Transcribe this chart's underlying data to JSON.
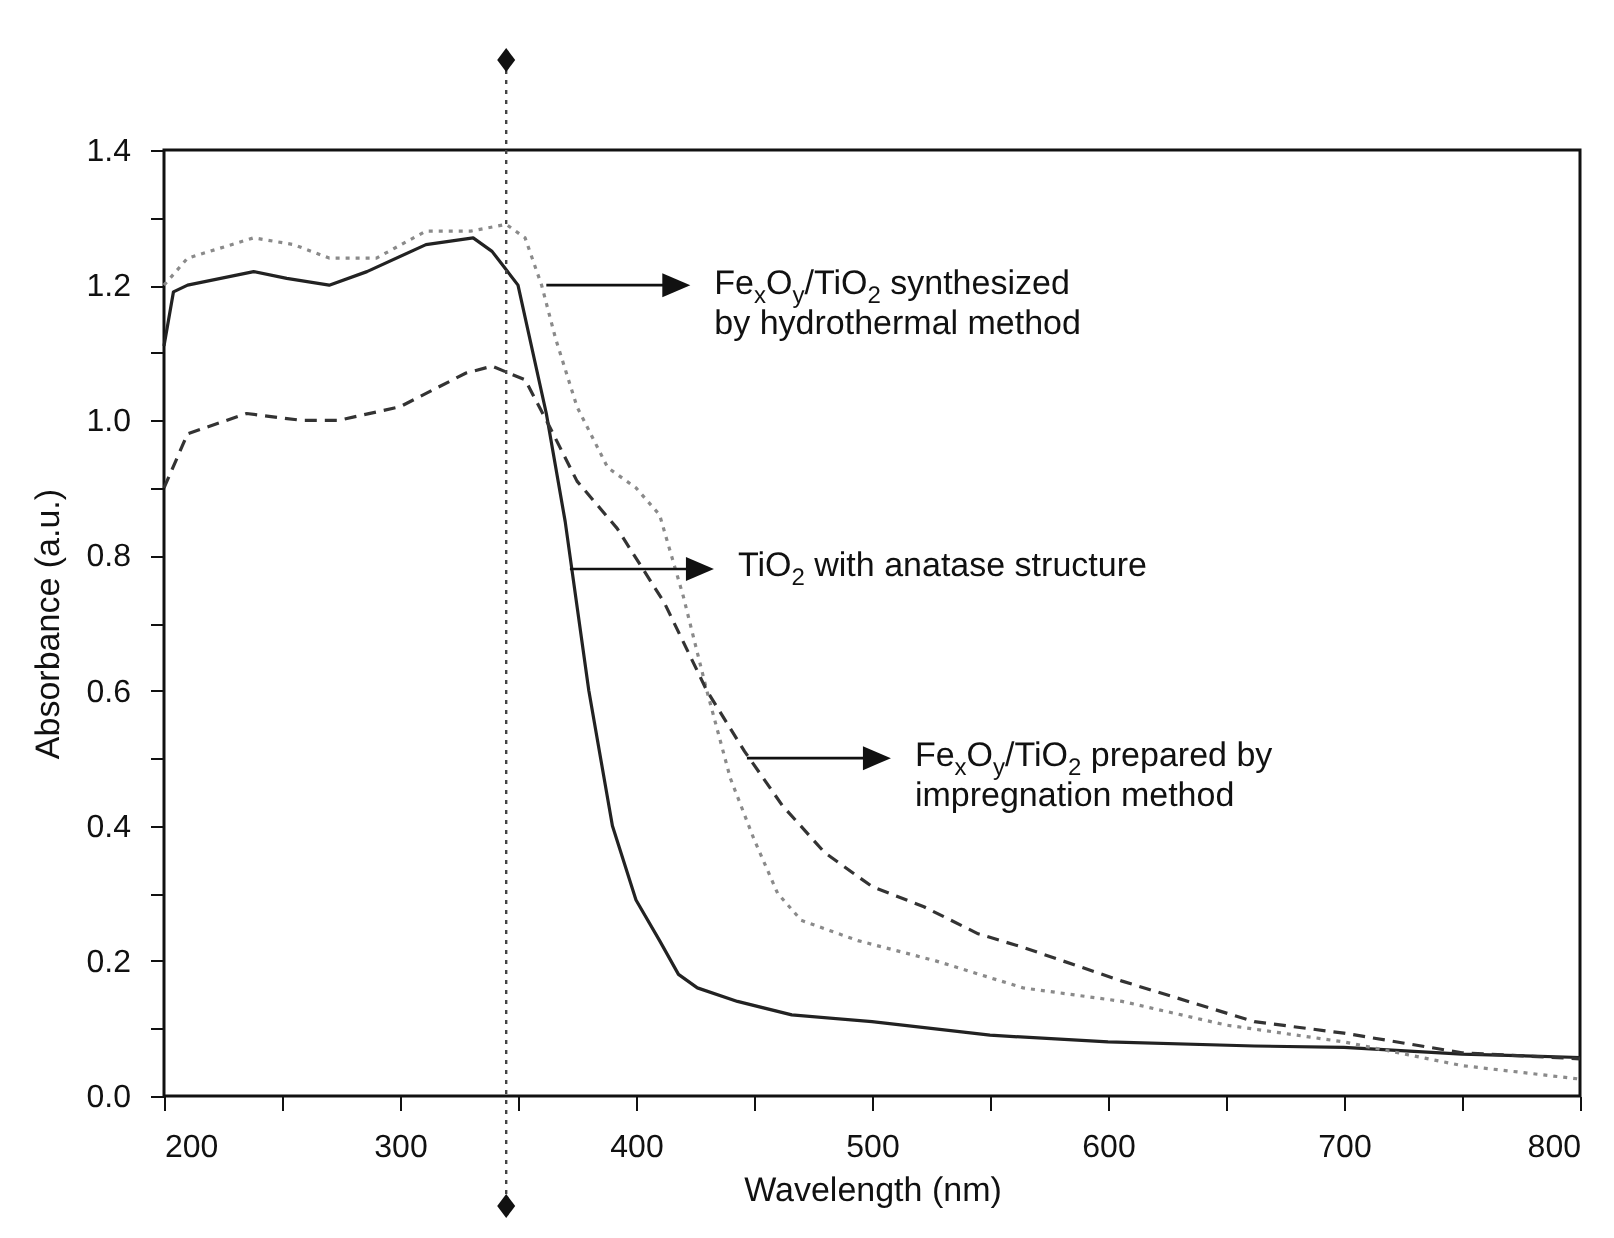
{
  "chart_data": {
    "type": "line",
    "xlabel": "Wavelength (nm)",
    "ylabel": "Absorbance (a.u.)",
    "xlim": [
      200,
      800
    ],
    "ylim": [
      0,
      1.4
    ],
    "xticks": [
      200,
      {
        "value": 250,
        "label": null
      },
      300,
      {
        "value": 350,
        "label": null
      },
      400,
      {
        "value": 450,
        "label": null
      },
      500,
      {
        "value": 550,
        "label": null
      },
      600,
      {
        "value": 650,
        "label": null
      },
      700,
      {
        "value": 750,
        "label": null
      },
      800
    ],
    "yticks": [
      {
        "value": 0,
        "label": "0.0"
      },
      {
        "value": 0.1,
        "label": null
      },
      0.2,
      {
        "value": 0.3,
        "label": null
      },
      0.4,
      {
        "value": 0.5,
        "label": null
      },
      0.6,
      {
        "value": 0.7,
        "label": null
      },
      0.8,
      {
        "value": 0.9,
        "label": null
      },
      {
        "value": 1,
        "label": "1.0"
      },
      {
        "value": 1.1,
        "label": null
      },
      1.2,
      {
        "value": 1.3,
        "label": null
      },
      1.4
    ],
    "grid": false,
    "marker": "none",
    "series": [
      {
        "color": "#222222",
        "line_style": "solid",
        "x": [
          200,
          204,
          210,
          238,
          252,
          270,
          286,
          311,
          331,
          339,
          350,
          362,
          370,
          380,
          390,
          400,
          410,
          418,
          426,
          443,
          466,
          500,
          550,
          600,
          662,
          700,
          750,
          800
        ],
        "values": [
          1.11,
          1.19,
          1.2,
          1.22,
          1.21,
          1.2,
          1.22,
          1.26,
          1.27,
          1.25,
          1.2,
          1.01,
          0.85,
          0.6,
          0.4,
          0.29,
          0.23,
          0.18,
          0.16,
          0.14,
          0.12,
          0.11,
          0.09,
          0.08,
          0.074,
          0.072,
          0.062,
          0.057
        ]
      },
      {
        "color": "#8a8a8a",
        "line_style": "dotted",
        "x": [
          200,
          210,
          238,
          255,
          270,
          290,
          311,
          330,
          345,
          353,
          360,
          366,
          375,
          388,
          400,
          410,
          420,
          430,
          440,
          450,
          460,
          470,
          494,
          527,
          564,
          606,
          650,
          700,
          750,
          800
        ],
        "values": [
          1.2,
          1.24,
          1.27,
          1.26,
          1.24,
          1.24,
          1.28,
          1.28,
          1.29,
          1.27,
          1.2,
          1.12,
          1.02,
          0.93,
          0.9,
          0.86,
          0.74,
          0.6,
          0.47,
          0.38,
          0.3,
          0.26,
          0.23,
          0.2,
          0.16,
          0.14,
          0.105,
          0.08,
          0.045,
          0.025
        ]
      },
      {
        "color": "#333333",
        "line_style": "dashed",
        "x": [
          200,
          210,
          235,
          258,
          274,
          300,
          328,
          339,
          353,
          362,
          375,
          392,
          412,
          430,
          446,
          462,
          480,
          500,
          522,
          545,
          564,
          606,
          662,
          700,
          750,
          800
        ],
        "values": [
          0.9,
          0.98,
          1.01,
          1.0,
          1.0,
          1.02,
          1.07,
          1.08,
          1.06,
          1.0,
          0.91,
          0.84,
          0.73,
          0.6,
          0.51,
          0.43,
          0.36,
          0.31,
          0.28,
          0.24,
          0.22,
          0.17,
          0.11,
          0.093,
          0.064,
          0.055
        ]
      }
    ],
    "ref_lines": [
      {
        "axis": "x",
        "value": 345,
        "color": "#444444",
        "line_style": "dotted"
      }
    ],
    "annotations": [
      {
        "text": "Fe$_{x}$O$_{y}$/TiO$_{2}$ synthesized by hydrothermal method",
        "x": 362,
        "y": 1.2
      },
      {
        "text": "TiO$_{2}$ with anatase structure",
        "x": 372,
        "y": 0.78
      },
      {
        "text": "Fe$_{x}$O$_{y}$/TiO$_{2}$ prepared by impregnation method",
        "x": 447,
        "y": 0.5
      }
    ]
  }
}
